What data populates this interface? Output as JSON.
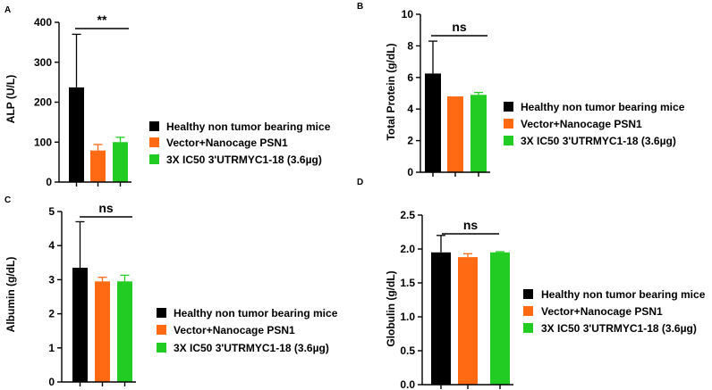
{
  "legend_labels": [
    "Healthy non tumor bearing mice",
    "Vector+Nanocage PSN1",
    "3X IC50 3'UTRMYC1-18 (3.6µg)"
  ],
  "colors": {
    "healthy": "#000000",
    "vector": "#ff6a13",
    "treated": "#22cc22",
    "axis": "#000000"
  },
  "chart_data": [
    {
      "panel": "A",
      "type": "bar",
      "ylabel": "ALP (U/L)",
      "ylim": [
        0,
        400
      ],
      "ticks": [
        "0",
        "100",
        "200",
        "300",
        "400"
      ],
      "categories": [
        "Healthy non tumor bearing mice",
        "Vector+Nanocage PSN1",
        "3X IC50 3'UTRMYC1-18 (3.6µg)"
      ],
      "values": [
        237,
        79,
        100
      ],
      "errors": [
        133,
        15,
        12
      ],
      "significance": "**",
      "legend_position": "right"
    },
    {
      "panel": "B",
      "type": "bar",
      "ylabel": "Total Protein (g/dL)",
      "ylim": [
        0,
        10
      ],
      "ticks": [
        "0",
        "2",
        "4",
        "6",
        "8",
        "10"
      ],
      "categories": [
        "Healthy non tumor bearing mice",
        "Vector+Nanocage PSN1",
        "3X IC50 3'UTRMYC1-18 (3.6µg)"
      ],
      "values": [
        6.25,
        4.8,
        4.9
      ],
      "errors": [
        2.05,
        0,
        0.15
      ],
      "significance": "ns",
      "legend_position": "right"
    },
    {
      "panel": "C",
      "type": "bar",
      "ylabel": "Albumin (g/dL)",
      "ylim": [
        0,
        5
      ],
      "ticks": [
        "0",
        "1",
        "2",
        "3",
        "4",
        "5"
      ],
      "categories": [
        "Healthy non tumor bearing mice",
        "Vector+Nanocage PSN1",
        "3X IC50 3'UTRMYC1-18 (3.6µg)"
      ],
      "values": [
        3.35,
        2.95,
        2.95
      ],
      "errors": [
        1.35,
        0.12,
        0.18
      ],
      "significance": "ns",
      "legend_position": "right"
    },
    {
      "panel": "D",
      "type": "bar",
      "ylabel": "Globulin (g/dL)",
      "ylim": [
        0,
        2.5
      ],
      "ticks": [
        "0.0",
        "0.5",
        "1.0",
        "1.5",
        "2.0",
        "2.5"
      ],
      "categories": [
        "Healthy non tumor bearing mice",
        "Vector+Nanocage PSN1",
        "3X IC50 3'UTRMYC1-18 (3.6µg)"
      ],
      "values": [
        1.95,
        1.88,
        1.95
      ],
      "errors": [
        0.25,
        0.05,
        0.01
      ],
      "significance": "ns",
      "legend_position": "right"
    }
  ]
}
